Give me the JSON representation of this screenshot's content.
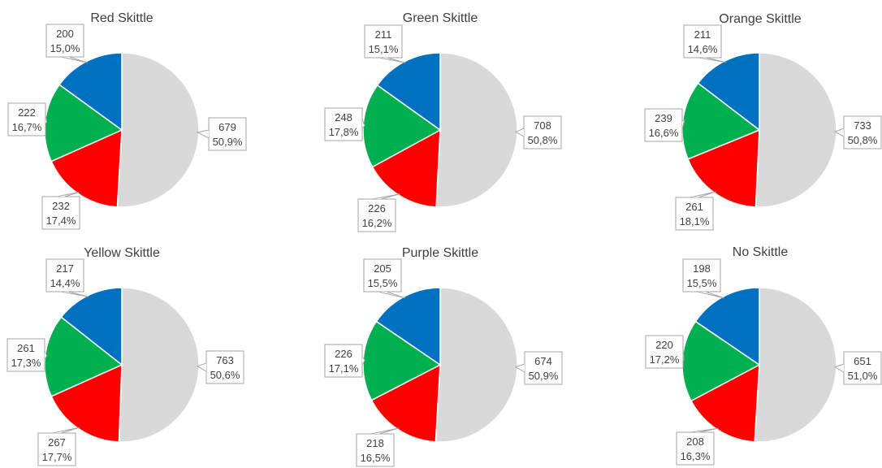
{
  "colors": {
    "blue": "#0070c0",
    "green": "#00b050",
    "red": "#ff0000",
    "grey": "#d9d9d9"
  },
  "chart_data": [
    {
      "type": "pie",
      "title": "Red Skittle",
      "slices": [
        {
          "color": "#d9d9d9",
          "value": 679,
          "percent": "50,9%"
        },
        {
          "color": "#ff0000",
          "value": 232,
          "percent": "17,4%"
        },
        {
          "color": "#00b050",
          "value": 222,
          "percent": "16,7%"
        },
        {
          "color": "#0070c0",
          "value": 200,
          "percent": "15,0%"
        }
      ]
    },
    {
      "type": "pie",
      "title": "Green Skittle",
      "slices": [
        {
          "color": "#d9d9d9",
          "value": 708,
          "percent": "50,8%"
        },
        {
          "color": "#ff0000",
          "value": 226,
          "percent": "16,2%"
        },
        {
          "color": "#00b050",
          "value": 248,
          "percent": "17,8%"
        },
        {
          "color": "#0070c0",
          "value": 211,
          "percent": "15,1%"
        }
      ]
    },
    {
      "type": "pie",
      "title": "Orange Skittle",
      "slices": [
        {
          "color": "#d9d9d9",
          "value": 733,
          "percent": "50,8%"
        },
        {
          "color": "#ff0000",
          "value": 261,
          "percent": "18,1%"
        },
        {
          "color": "#00b050",
          "value": 239,
          "percent": "16,6%"
        },
        {
          "color": "#0070c0",
          "value": 211,
          "percent": "14,6%"
        }
      ]
    },
    {
      "type": "pie",
      "title": "Yellow Skittle",
      "slices": [
        {
          "color": "#d9d9d9",
          "value": 763,
          "percent": "50,6%"
        },
        {
          "color": "#ff0000",
          "value": 267,
          "percent": "17,7%"
        },
        {
          "color": "#00b050",
          "value": 261,
          "percent": "17,3%"
        },
        {
          "color": "#0070c0",
          "value": 217,
          "percent": "14,4%"
        }
      ]
    },
    {
      "type": "pie",
      "title": "Purple Skittle",
      "slices": [
        {
          "color": "#d9d9d9",
          "value": 674,
          "percent": "50,9%"
        },
        {
          "color": "#ff0000",
          "value": 218,
          "percent": "16,5%"
        },
        {
          "color": "#00b050",
          "value": 226,
          "percent": "17,1%"
        },
        {
          "color": "#0070c0",
          "value": 205,
          "percent": "15,5%"
        }
      ]
    },
    {
      "type": "pie",
      "title": "No Skittle",
      "slices": [
        {
          "color": "#d9d9d9",
          "value": 651,
          "percent": "51,0%"
        },
        {
          "color": "#ff0000",
          "value": 208,
          "percent": "16,3%"
        },
        {
          "color": "#00b050",
          "value": 220,
          "percent": "17,2%"
        },
        {
          "color": "#0070c0",
          "value": 198,
          "percent": "15,5%"
        }
      ]
    }
  ]
}
